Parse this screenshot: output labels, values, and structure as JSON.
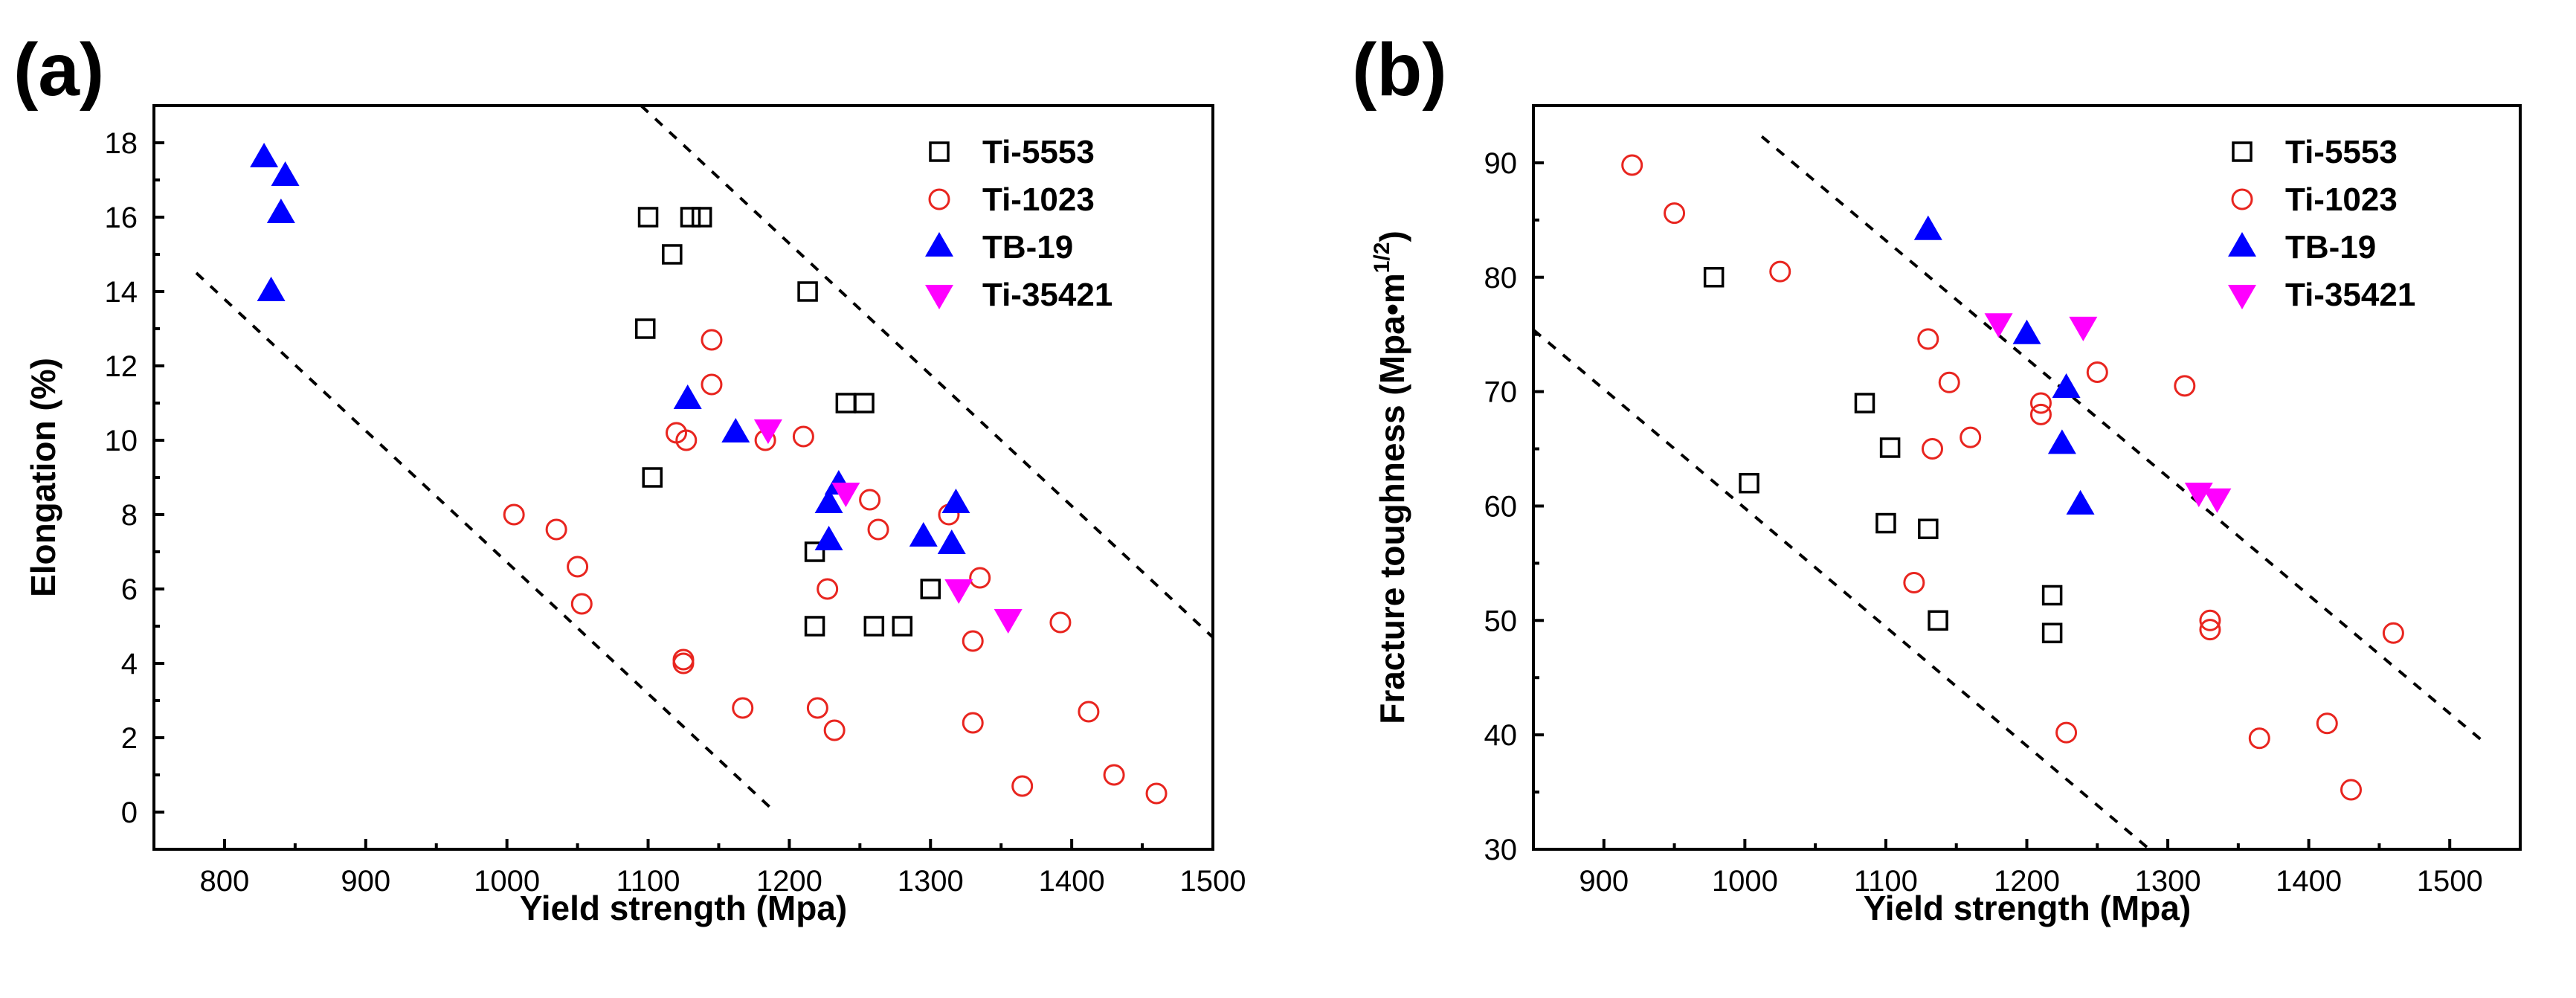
{
  "figure": {
    "series_styles": [
      {
        "name": "Ti-5553",
        "marker": "square-open",
        "color": "#000000"
      },
      {
        "name": "Ti-1023",
        "marker": "circle-open",
        "color": "#e8251f"
      },
      {
        "name": "TB-19",
        "marker": "triangle-up",
        "color": "#0000ff"
      },
      {
        "name": "Ti-35421",
        "marker": "triangle-down",
        "color": "#ff00ff"
      }
    ]
  },
  "chart_data": [
    {
      "type": "scatter",
      "panel_label": "(a)",
      "xlabel": "Yield strength (Mpa)",
      "ylabel": "Elongation (%)",
      "xlim": [
        750,
        1500
      ],
      "ylim": [
        -1,
        19
      ],
      "xticks": [
        800,
        900,
        1000,
        1100,
        1200,
        1300,
        1400,
        1500
      ],
      "yticks": [
        0,
        2,
        4,
        6,
        8,
        10,
        12,
        14,
        16,
        18
      ],
      "legend_position": "top-right",
      "series": [
        {
          "name": "Ti-5553",
          "points": [
            [
              1100,
              16
            ],
            [
              1130,
              16
            ],
            [
              1138,
              16
            ],
            [
              1117,
              15
            ],
            [
              1213,
              14
            ],
            [
              1098,
              13
            ],
            [
              1103,
              9
            ],
            [
              1240,
              11
            ],
            [
              1253,
              11
            ],
            [
              1218,
              7
            ],
            [
              1300,
              6
            ],
            [
              1218,
              5
            ],
            [
              1260,
              5
            ],
            [
              1280,
              5
            ]
          ]
        },
        {
          "name": "Ti-1023",
          "points": [
            [
              1005,
              8
            ],
            [
              1035,
              7.6
            ],
            [
              1050,
              6.6
            ],
            [
              1053,
              5.6
            ],
            [
              1125,
              4.1
            ],
            [
              1125,
              4.0
            ],
            [
              1120,
              10.2
            ],
            [
              1127,
              10
            ],
            [
              1145,
              12.7
            ],
            [
              1145,
              11.5
            ],
            [
              1183,
              10
            ],
            [
              1210,
              10.1
            ],
            [
              1167,
              2.8
            ],
            [
              1220,
              2.8
            ],
            [
              1227,
              6
            ],
            [
              1232,
              2.2
            ],
            [
              1257,
              8.4
            ],
            [
              1263,
              7.6
            ],
            [
              1313,
              8
            ],
            [
              1335,
              6.3
            ],
            [
              1330,
              4.6
            ],
            [
              1330,
              2.4
            ],
            [
              1392,
              5.1
            ],
            [
              1412,
              2.7
            ],
            [
              1430,
              1
            ],
            [
              1365,
              0.7
            ],
            [
              1460,
              0.5
            ]
          ]
        },
        {
          "name": "TB-19",
          "points": [
            [
              828,
              17.6
            ],
            [
              843,
              17.1
            ],
            [
              840,
              16.1
            ],
            [
              833,
              14
            ],
            [
              1128,
              11.1
            ],
            [
              1162,
              10.2
            ],
            [
              1228,
              8.3
            ],
            [
              1235,
              8.8
            ],
            [
              1228,
              7.3
            ],
            [
              1295,
              7.4
            ],
            [
              1315,
              7.2
            ],
            [
              1318,
              8.3
            ]
          ]
        },
        {
          "name": "Ti-35421",
          "points": [
            [
              1185,
              10.3
            ],
            [
              1240,
              8.6
            ],
            [
              1320,
              6
            ],
            [
              1355,
              5.2
            ]
          ]
        }
      ],
      "trend_lines": [
        {
          "from": [
            780,
            14.5
          ],
          "to": [
            1190,
            0
          ]
        },
        {
          "from": [
            1095,
            19
          ],
          "to": [
            1500,
            4.7
          ]
        }
      ]
    },
    {
      "type": "scatter",
      "panel_label": "(b)",
      "xlabel": "Yield strength (Mpa)",
      "ylabel": "Fracture toughness (Mpa•m",
      "ylabel_superscript": "1/2",
      "ylabel_suffix": ")",
      "xlim": [
        850,
        1550
      ],
      "ylim": [
        30,
        95
      ],
      "xticks": [
        900,
        1000,
        1100,
        1200,
        1300,
        1400,
        1500
      ],
      "yticks": [
        30,
        40,
        50,
        60,
        70,
        80,
        90
      ],
      "legend_position": "top-right",
      "series": [
        {
          "name": "Ti-5553",
          "points": [
            [
              978,
              80
            ],
            [
              1003,
              62
            ],
            [
              1085,
              69
            ],
            [
              1103,
              65.1
            ],
            [
              1100,
              58.5
            ],
            [
              1130,
              58
            ],
            [
              1137,
              50
            ],
            [
              1218,
              52.2
            ],
            [
              1218,
              48.9
            ]
          ]
        },
        {
          "name": "Ti-1023",
          "points": [
            [
              920,
              89.8
            ],
            [
              950,
              85.6
            ],
            [
              1025,
              80.5
            ],
            [
              1130,
              74.6
            ],
            [
              1145,
              70.8
            ],
            [
              1133,
              65
            ],
            [
              1160,
              66
            ],
            [
              1120,
              53.3
            ],
            [
              1210,
              69
            ],
            [
              1210,
              68
            ],
            [
              1250,
              71.7
            ],
            [
              1312,
              70.5
            ],
            [
              1330,
              50
            ],
            [
              1330,
              49.2
            ],
            [
              1228,
              40.2
            ],
            [
              1365,
              39.7
            ],
            [
              1413,
              41
            ],
            [
              1430,
              35.2
            ],
            [
              1460,
              48.9
            ]
          ]
        },
        {
          "name": "TB-19",
          "points": [
            [
              1130,
              84.1
            ],
            [
              1200,
              75
            ],
            [
              1228,
              70.3
            ],
            [
              1225,
              65.4
            ],
            [
              1238,
              60.1
            ]
          ]
        },
        {
          "name": "Ti-35421",
          "points": [
            [
              1180,
              76
            ],
            [
              1240,
              75.7
            ],
            [
              1322,
              61.2
            ],
            [
              1335,
              60.7
            ]
          ]
        }
      ],
      "trend_lines": [
        {
          "from": [
            850,
            75.4
          ],
          "to": [
            1287,
            30
          ]
        },
        {
          "from": [
            1012,
            92.3
          ],
          "to": [
            1522,
            39.6
          ]
        }
      ]
    }
  ]
}
